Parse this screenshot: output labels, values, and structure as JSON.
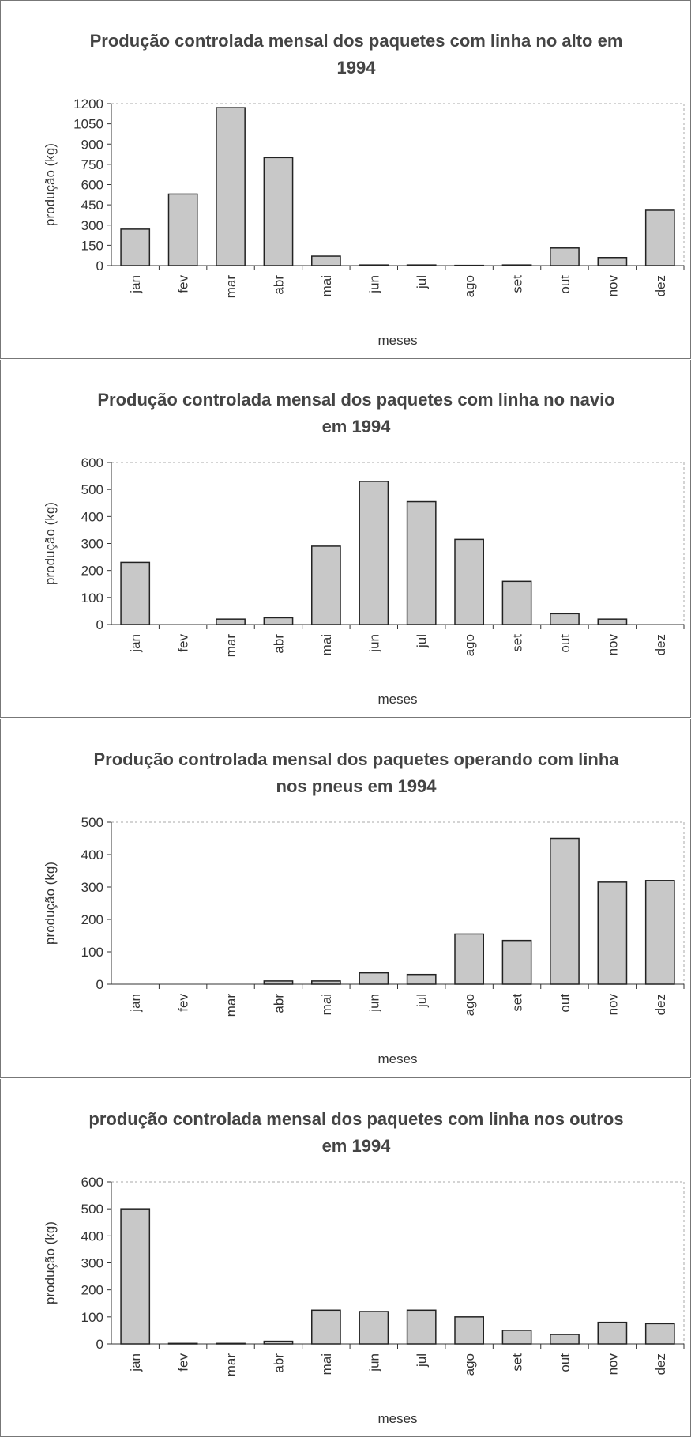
{
  "chart_data": [
    {
      "type": "bar",
      "title": "Produção controlada mensal dos paquetes com linha no alto em 1994",
      "categories": [
        "jan",
        "fev",
        "mar",
        "abr",
        "mai",
        "jun",
        "jul",
        "ago",
        "set",
        "out",
        "nov",
        "dez"
      ],
      "values": [
        270,
        530,
        1170,
        800,
        70,
        5,
        5,
        2,
        5,
        130,
        60,
        410
      ],
      "color": "#c8c8c8",
      "ylim": [
        0,
        1200
      ],
      "yticks": [
        0,
        150,
        300,
        450,
        600,
        750,
        900,
        1050,
        1200
      ],
      "x_label": "meses",
      "y_label": "produção (kg)"
    },
    {
      "type": "bar",
      "title": "Produção controlada mensal dos paquetes com linha no navio em 1994",
      "categories": [
        "jan",
        "fev",
        "mar",
        "abr",
        "mai",
        "jun",
        "jul",
        "ago",
        "set",
        "out",
        "nov",
        "dez"
      ],
      "values": [
        230,
        0,
        20,
        25,
        290,
        530,
        455,
        315,
        160,
        40,
        20,
        0
      ],
      "color": "#c8c8c8",
      "ylim": [
        0,
        600
      ],
      "yticks": [
        0,
        100,
        200,
        300,
        400,
        500,
        600
      ],
      "x_label": "meses",
      "y_label": "produção (kg)"
    },
    {
      "type": "bar",
      "title": "Produção controlada mensal dos paquetes operando com linha nos pneus em 1994",
      "categories": [
        "jan",
        "fev",
        "mar",
        "abr",
        "mai",
        "jun",
        "jul",
        "ago",
        "set",
        "out",
        "nov",
        "dez"
      ],
      "values": [
        0,
        0,
        0,
        10,
        10,
        35,
        30,
        155,
        135,
        450,
        315,
        320
      ],
      "color": "#c8c8c8",
      "ylim": [
        0,
        500
      ],
      "yticks": [
        0,
        100,
        200,
        300,
        400,
        500
      ],
      "x_label": "meses",
      "y_label": "produção (kg)"
    },
    {
      "type": "bar",
      "title": "produção controlada mensal dos paquetes com linha nos outros em 1994",
      "categories": [
        "jan",
        "fev",
        "mar",
        "abr",
        "mai",
        "jun",
        "jul",
        "ago",
        "set",
        "out",
        "nov",
        "dez"
      ],
      "values": [
        500,
        2,
        2,
        10,
        125,
        120,
        125,
        100,
        50,
        35,
        80,
        75
      ],
      "color": "#c8c8c8",
      "ylim": [
        0,
        600
      ],
      "yticks": [
        0,
        100,
        200,
        300,
        400,
        500,
        600
      ],
      "x_label": "meses",
      "y_label": "produção (kg)"
    }
  ]
}
